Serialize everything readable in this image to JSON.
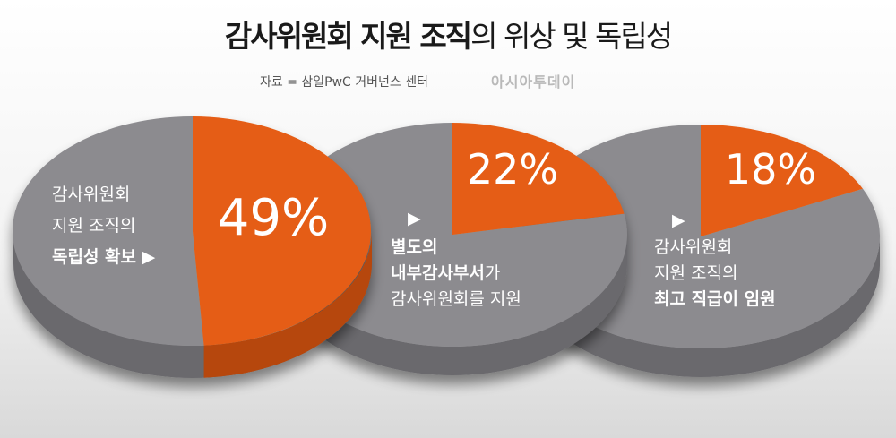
{
  "header": {
    "title_bold": "감사위원회 지원 조직",
    "title_rest": "의 위상 및 독립성",
    "source": "자료 = 삼일PwC 거버넌스 센터",
    "brand": "아시아투데이"
  },
  "colors": {
    "highlight": "#e55d12",
    "highlight_side": "#b6470b",
    "base": "#8c8b8f",
    "base_side": "#6a696d",
    "label": "#ffffff"
  },
  "chart_data": [
    {
      "type": "pie",
      "value": 49,
      "unit": "%",
      "value_label": "49%",
      "slices": [
        {
          "name": "감사위원회 지원 조직의 독립성 확보",
          "value": 49
        },
        {
          "name": "",
          "value": 51
        }
      ],
      "label_lines": [
        "감사위원회",
        "지원 조직의",
        "독립성 확보 ▶"
      ]
    },
    {
      "type": "pie",
      "value": 22,
      "unit": "%",
      "value_label": "22%",
      "slices": [
        {
          "name": "별도의 내부감사부서가 감사위원회를 지원",
          "value": 22
        },
        {
          "name": "",
          "value": 78
        }
      ],
      "marker": "▶",
      "label_lines": [
        "별도의",
        "내부감사부서",
        "가",
        "감사위원회를 지원"
      ]
    },
    {
      "type": "pie",
      "value": 18,
      "unit": "%",
      "value_label": "18%",
      "slices": [
        {
          "name": "감사위원회 지원 조직의 최고 직급이 임원",
          "value": 18
        },
        {
          "name": "",
          "value": 82
        }
      ],
      "marker": "▶",
      "label_lines": [
        "감사위원회",
        "지원 조직의",
        "최고 직급이 임원"
      ]
    }
  ]
}
